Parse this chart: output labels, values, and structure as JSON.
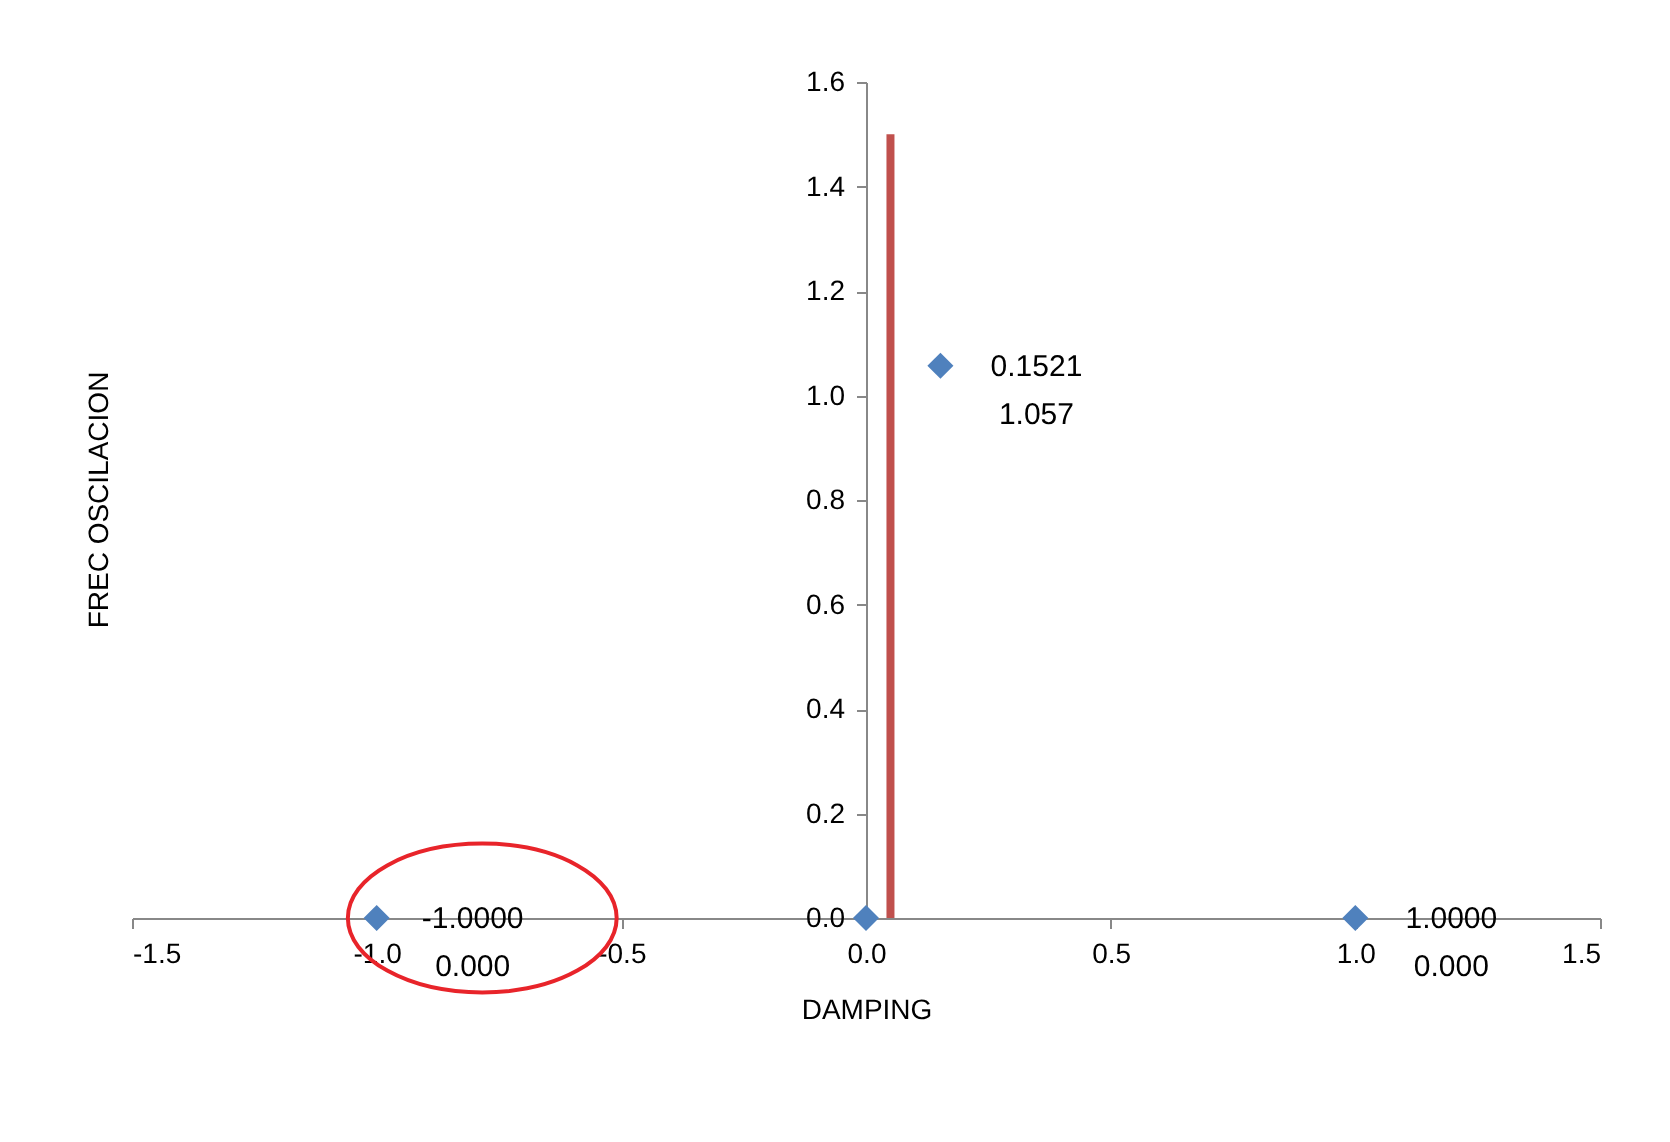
{
  "chart_data": {
    "type": "scatter",
    "xlabel": "DAMPING",
    "ylabel": "FREC OSCILACION",
    "series": [
      {
        "color": "#4f81bd",
        "marker": "diamond",
        "x": [
          -1.0,
          0.0,
          0.1521,
          1.0
        ],
        "values": [
          0.0,
          0.0,
          1.057,
          0.0
        ],
        "value_labels": [
          "-1.0000\n0.000",
          null,
          "0.1521\n1.057",
          "1.0000\n0.000"
        ]
      },
      {
        "type": "line",
        "color": "#c0504d",
        "line_style": "solid",
        "x": [
          0.05,
          0.05
        ],
        "values": [
          0.0,
          1.5
        ]
      }
    ],
    "xlim": [
      -1.5,
      1.5
    ],
    "ylim": [
      0,
      1.6
    ],
    "xticks": [
      {
        "value": -1.5,
        "label": "-1.5"
      },
      {
        "value": -1.0,
        "label": "-1.0"
      },
      {
        "value": -0.5,
        "label": "-0.5"
      },
      {
        "value": 0,
        "label": "0.0"
      },
      {
        "value": 0.5,
        "label": "0.5"
      },
      {
        "value": 1.0,
        "label": "1.0"
      },
      {
        "value": 1.5,
        "label": "1.5"
      }
    ],
    "yticks": [
      {
        "value": 0,
        "label": "0.0"
      },
      {
        "value": 0.2,
        "label": "0.2"
      },
      {
        "value": 0.4,
        "label": "0.4"
      },
      {
        "value": 0.6,
        "label": "0.6"
      },
      {
        "value": 0.8,
        "label": "0.8"
      },
      {
        "value": 1.0,
        "label": "1.0"
      },
      {
        "value": 1.2,
        "label": "1.2"
      },
      {
        "value": 1.4,
        "label": "1.4"
      },
      {
        "value": 1.6,
        "label": "1.6"
      }
    ],
    "grid": false
  }
}
